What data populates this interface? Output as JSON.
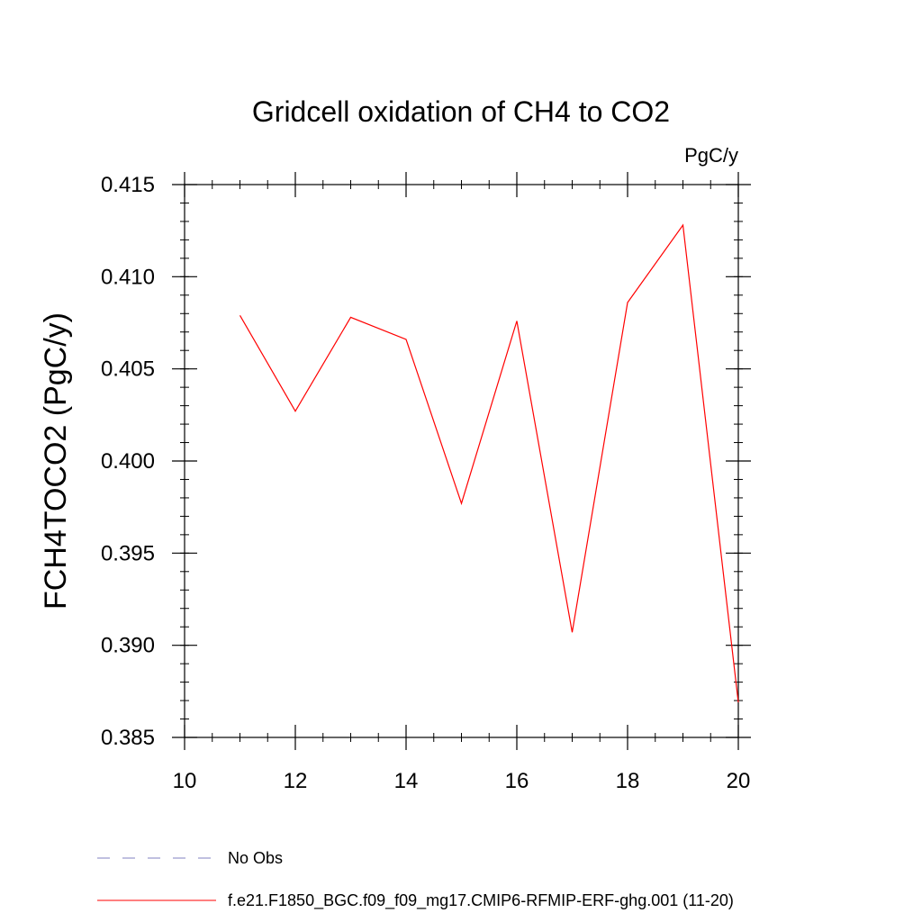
{
  "chart_data": {
    "type": "line",
    "title": "Gridcell oxidation of CH4 to CO2",
    "units": "PgC/y",
    "xlabel": "",
    "ylabel": "FCH4TOCO2  (PgC/y)",
    "xlim": [
      10,
      20
    ],
    "ylim": [
      0.385,
      0.415
    ],
    "xticks": [
      10,
      12,
      14,
      16,
      18,
      20
    ],
    "xtick_labels": [
      "10",
      "12",
      "14",
      "16",
      "18",
      "20"
    ],
    "yticks": [
      0.385,
      0.39,
      0.395,
      0.4,
      0.405,
      0.41,
      0.415
    ],
    "ytick_labels": [
      "0.385",
      "0.390",
      "0.395",
      "0.400",
      "0.405",
      "0.410",
      "0.415"
    ],
    "grid": false,
    "legend_position": "bottom",
    "legend": [
      {
        "name": "No Obs",
        "color": "#8080c0",
        "style": "dashed"
      },
      {
        "name": "f.e21.F1850_BGC.f09_f09_mg17.CMIP6-RFMIP-ERF-ghg.001 (11-20)",
        "color": "#ff0000",
        "style": "solid"
      }
    ],
    "series": [
      {
        "name": "f.e21.F1850_BGC.f09_f09_mg17.CMIP6-RFMIP-ERF-ghg.001 (11-20)",
        "color": "#ff0000",
        "x": [
          11,
          12,
          13,
          14,
          15,
          16,
          17,
          18,
          19,
          20
        ],
        "y": [
          0.4079,
          0.4027,
          0.4078,
          0.4066,
          0.3977,
          0.4076,
          0.3907,
          0.4086,
          0.4128,
          0.3869
        ]
      }
    ]
  }
}
